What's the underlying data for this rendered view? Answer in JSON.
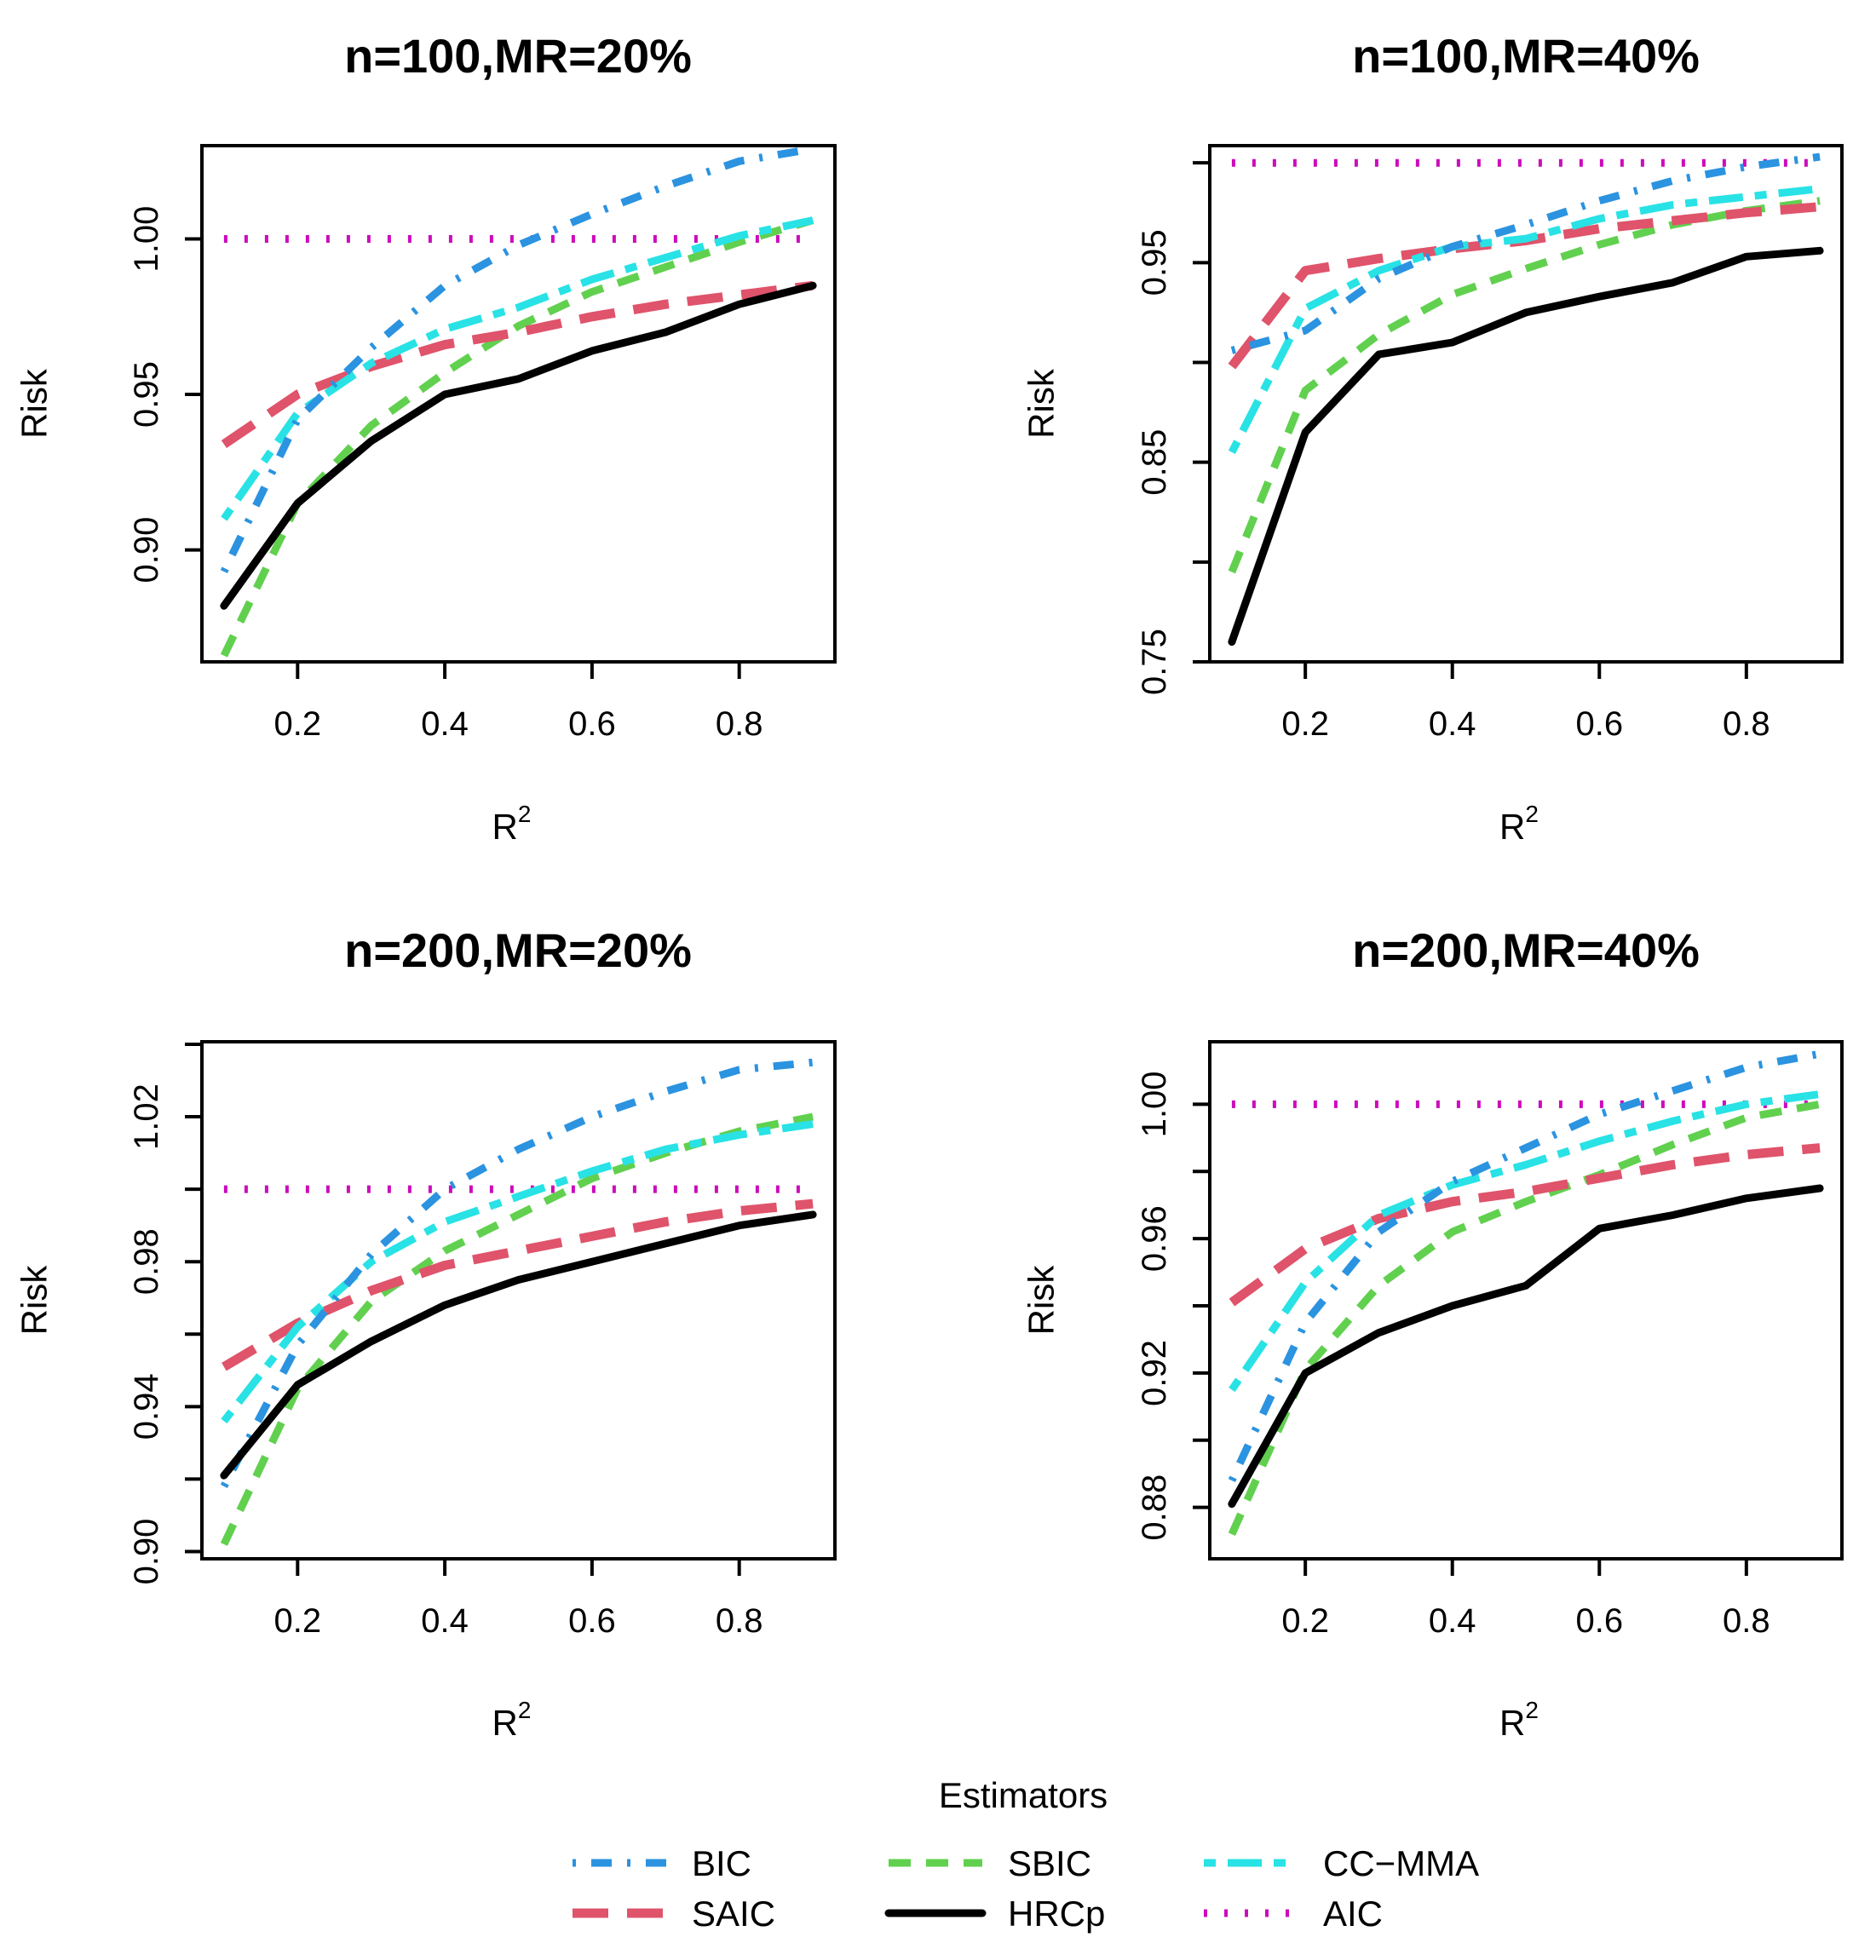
{
  "figure": {
    "ylabel": "Risk",
    "xlabel": "R",
    "xlabel_sup": "2"
  },
  "colors": {
    "BIC": "#2b93e0",
    "SAIC": "#df536b",
    "SBIC": "#61d04f",
    "HRCp": "#000000",
    "CC-MMA": "#28e2e5",
    "AIC": "#cd0bbc"
  },
  "legend": {
    "title": "Estimators",
    "items": [
      {
        "name": "BIC",
        "label": "BIC",
        "style": "dotdash"
      },
      {
        "name": "SAIC",
        "label": "SAIC",
        "style": "longdash"
      },
      {
        "name": "SBIC",
        "label": "SBIC",
        "style": "dashed"
      },
      {
        "name": "HRCp",
        "label": "HRCp",
        "style": "solid"
      },
      {
        "name": "CC-MMA",
        "label": "CC−MMA",
        "style": "twodash"
      },
      {
        "name": "AIC",
        "label": "AIC",
        "style": "dotted"
      }
    ]
  },
  "chart_data": [
    {
      "type": "line",
      "title": "n=100,MR=20%",
      "xlabel": "R2",
      "ylabel": "Risk",
      "xlim": [
        0.07,
        0.93
      ],
      "ylim": [
        0.864,
        1.03
      ],
      "xticks": [
        0.2,
        0.4,
        0.6,
        0.8
      ],
      "xtick_labels": [
        "0.2",
        "0.4",
        "0.6",
        "0.8"
      ],
      "yticks": [
        0.9,
        0.95,
        1.0
      ],
      "ytick_labels": [
        "0.90",
        "0.95",
        "1.00"
      ],
      "x": [
        0.1,
        0.2,
        0.3,
        0.4,
        0.5,
        0.6,
        0.7,
        0.8,
        0.9
      ],
      "series": [
        {
          "name": "BIC",
          "values": [
            0.893,
            0.942,
            0.965,
            0.985,
            0.998,
            1.008,
            1.017,
            1.025,
            1.029
          ]
        },
        {
          "name": "SAIC",
          "values": [
            0.934,
            0.95,
            0.959,
            0.966,
            0.97,
            0.975,
            0.979,
            0.982,
            0.985
          ]
        },
        {
          "name": "SBIC",
          "values": [
            0.866,
            0.915,
            0.94,
            0.957,
            0.972,
            0.983,
            0.991,
            0.999,
            1.006
          ]
        },
        {
          "name": "HRCp",
          "values": [
            0.882,
            0.915,
            0.935,
            0.95,
            0.955,
            0.964,
            0.97,
            0.979,
            0.985
          ]
        },
        {
          "name": "CC-MMA",
          "values": [
            0.91,
            0.944,
            0.96,
            0.971,
            0.978,
            0.987,
            0.994,
            1.001,
            1.006
          ]
        },
        {
          "name": "AIC",
          "values": [
            1.0,
            1.0,
            1.0,
            1.0,
            1.0,
            1.0,
            1.0,
            1.0,
            1.0
          ]
        }
      ]
    },
    {
      "type": "line",
      "title": "n=100,MR=40%",
      "xlabel": "R2",
      "ylabel": "Risk",
      "xlim": [
        0.07,
        0.93
      ],
      "ylim": [
        0.75,
        1.0086
      ],
      "xticks": [
        0.2,
        0.4,
        0.6,
        0.8
      ],
      "xtick_labels": [
        "0.2",
        "0.4",
        "0.6",
        "0.8"
      ],
      "yticks": [
        0.75,
        0.8,
        0.85,
        0.9,
        0.95,
        1.0
      ],
      "ytick_labels": [
        "0.75",
        "",
        "0.85",
        "",
        "0.95",
        ""
      ],
      "x": [
        0.1,
        0.2,
        0.3,
        0.4,
        0.5,
        0.6,
        0.7,
        0.8,
        0.9
      ],
      "series": [
        {
          "name": "BIC",
          "values": [
            0.906,
            0.916,
            0.942,
            0.958,
            0.969,
            0.981,
            0.991,
            0.998,
            1.003
          ]
        },
        {
          "name": "SAIC",
          "values": [
            0.898,
            0.946,
            0.952,
            0.957,
            0.961,
            0.967,
            0.971,
            0.975,
            0.978
          ]
        },
        {
          "name": "SBIC",
          "values": [
            0.795,
            0.886,
            0.914,
            0.934,
            0.947,
            0.959,
            0.969,
            0.976,
            0.981
          ]
        },
        {
          "name": "HRCp",
          "values": [
            0.76,
            0.865,
            0.904,
            0.91,
            0.925,
            0.933,
            0.94,
            0.953,
            0.956
          ]
        },
        {
          "name": "CC-MMA",
          "values": [
            0.855,
            0.927,
            0.946,
            0.958,
            0.962,
            0.972,
            0.979,
            0.983,
            0.987
          ]
        },
        {
          "name": "AIC",
          "values": [
            1.0,
            1.0,
            1.0,
            1.0,
            1.0,
            1.0,
            1.0,
            1.0,
            1.0
          ]
        }
      ]
    },
    {
      "type": "line",
      "title": "n=200,MR=20%",
      "xlabel": "R2",
      "ylabel": "Risk",
      "xlim": [
        0.07,
        0.93
      ],
      "ylim": [
        0.898,
        1.0407
      ],
      "xticks": [
        0.2,
        0.4,
        0.6,
        0.8
      ],
      "xtick_labels": [
        "0.2",
        "0.4",
        "0.6",
        "0.8"
      ],
      "yticks": [
        0.9,
        0.92,
        0.94,
        0.96,
        0.98,
        1.0,
        1.02,
        1.04
      ],
      "ytick_labels": [
        "0.90",
        "",
        "0.94",
        "",
        "0.98",
        "",
        "1.02",
        ""
      ],
      "x": [
        0.1,
        0.2,
        0.3,
        0.4,
        0.5,
        0.6,
        0.7,
        0.8,
        0.9
      ],
      "series": [
        {
          "name": "BIC",
          "values": [
            0.918,
            0.957,
            0.982,
            1.0,
            1.011,
            1.02,
            1.027,
            1.033,
            1.035
          ]
        },
        {
          "name": "SAIC",
          "values": [
            0.951,
            0.963,
            0.972,
            0.979,
            0.983,
            0.987,
            0.991,
            0.994,
            0.996
          ]
        },
        {
          "name": "SBIC",
          "values": [
            0.902,
            0.945,
            0.969,
            0.983,
            0.993,
            1.003,
            1.01,
            1.016,
            1.02
          ]
        },
        {
          "name": "HRCp",
          "values": [
            0.921,
            0.946,
            0.958,
            0.968,
            0.975,
            0.98,
            0.985,
            0.99,
            0.993
          ]
        },
        {
          "name": "CC-MMA",
          "values": [
            0.936,
            0.962,
            0.98,
            0.991,
            0.998,
            1.005,
            1.011,
            1.015,
            1.018
          ]
        },
        {
          "name": "AIC",
          "values": [
            1.0,
            1.0,
            1.0,
            1.0,
            1.0,
            1.0,
            1.0,
            1.0,
            1.0
          ]
        }
      ]
    },
    {
      "type": "line",
      "title": "n=200,MR=40%",
      "xlabel": "R2",
      "ylabel": "Risk",
      "xlim": [
        0.07,
        0.93
      ],
      "ylim": [
        0.8647,
        1.0186
      ],
      "xticks": [
        0.2,
        0.4,
        0.6,
        0.8
      ],
      "xtick_labels": [
        "0.2",
        "0.4",
        "0.6",
        "0.8"
      ],
      "yticks": [
        0.88,
        0.9,
        0.92,
        0.94,
        0.96,
        0.98,
        1.0
      ],
      "ytick_labels": [
        "0.88",
        "",
        "0.92",
        "",
        "0.96",
        "",
        "1.00"
      ],
      "x": [
        0.1,
        0.2,
        0.3,
        0.4,
        0.5,
        0.6,
        0.7,
        0.8,
        0.9
      ],
      "series": [
        {
          "name": "BIC",
          "values": [
            0.888,
            0.935,
            0.962,
            0.977,
            0.987,
            0.997,
            1.004,
            1.011,
            1.015
          ]
        },
        {
          "name": "SAIC",
          "values": [
            0.941,
            0.957,
            0.966,
            0.971,
            0.974,
            0.978,
            0.982,
            0.985,
            0.987
          ]
        },
        {
          "name": "SBIC",
          "values": [
            0.872,
            0.921,
            0.946,
            0.962,
            0.971,
            0.979,
            0.988,
            0.996,
            1.0
          ]
        },
        {
          "name": "HRCp",
          "values": [
            0.881,
            0.92,
            0.932,
            0.94,
            0.946,
            0.963,
            0.967,
            0.972,
            0.975
          ]
        },
        {
          "name": "CC-MMA",
          "values": [
            0.915,
            0.947,
            0.967,
            0.976,
            0.982,
            0.989,
            0.995,
            1.0,
            1.003
          ]
        },
        {
          "name": "AIC",
          "values": [
            1.0,
            1.0,
            1.0,
            1.0,
            1.0,
            1.0,
            1.0,
            1.0,
            1.0
          ]
        }
      ]
    }
  ]
}
